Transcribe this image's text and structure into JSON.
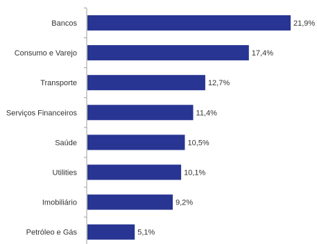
{
  "chart_data": {
    "type": "bar",
    "orientation": "horizontal",
    "categories": [
      "Bancos",
      "Consumo e Varejo",
      "Transporte",
      "Serviços Financeiros",
      "Saúde",
      "Utilities",
      "Imobiliário",
      "Petróleo e Gás"
    ],
    "values": [
      21.9,
      17.4,
      12.7,
      11.4,
      10.5,
      10.1,
      9.2,
      5.1
    ],
    "value_labels": [
      "21,9%",
      "17,4%",
      "12,7%",
      "11,4%",
      "10,5%",
      "10,1%",
      "9,2%",
      "5,1%"
    ],
    "unit": "%",
    "xlim": [
      0,
      21.9
    ],
    "grid": false,
    "legend": "none",
    "bar_color": "#283593",
    "axis_color": "#9e9e9e"
  }
}
